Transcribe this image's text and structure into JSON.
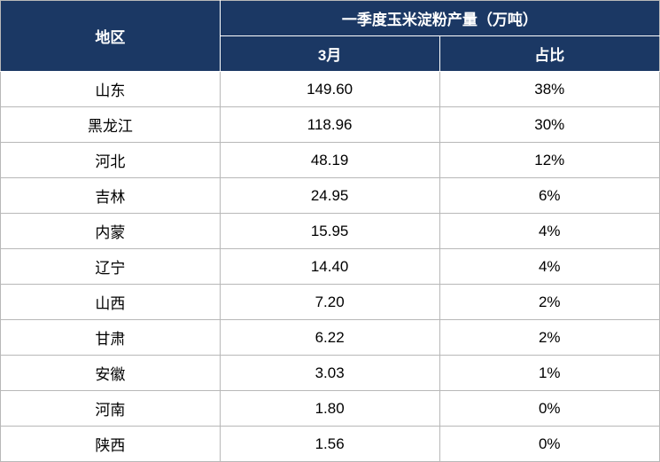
{
  "table": {
    "header": {
      "region": "地区",
      "group": "一季度玉米淀粉产量（万吨）",
      "march": "3月",
      "percent": "占比"
    },
    "header_bg": "#1b3864",
    "header_fg": "#ffffff",
    "body_bg": "#ffffff",
    "body_fg": "#000000",
    "border_color": "#b8b8b8",
    "inner_header_border": "#ffffff",
    "font_size": 17,
    "columns": [
      "region",
      "march",
      "percent"
    ],
    "col_widths_pct": [
      33.3,
      33.3,
      33.4
    ],
    "rows": [
      {
        "region": "山东",
        "march": "149.60",
        "percent": "38%"
      },
      {
        "region": "黑龙江",
        "march": "118.96",
        "percent": "30%"
      },
      {
        "region": "河北",
        "march": "48.19",
        "percent": "12%"
      },
      {
        "region": "吉林",
        "march": "24.95",
        "percent": "6%"
      },
      {
        "region": "内蒙",
        "march": "15.95",
        "percent": "4%"
      },
      {
        "region": "辽宁",
        "march": "14.40",
        "percent": "4%"
      },
      {
        "region": "山西",
        "march": "7.20",
        "percent": "2%"
      },
      {
        "region": "甘肃",
        "march": "6.22",
        "percent": "2%"
      },
      {
        "region": "安徽",
        "march": "3.03",
        "percent": "1%"
      },
      {
        "region": "河南",
        "march": "1.80",
        "percent": "0%"
      },
      {
        "region": "陕西",
        "march": "1.56",
        "percent": "0%"
      }
    ]
  }
}
